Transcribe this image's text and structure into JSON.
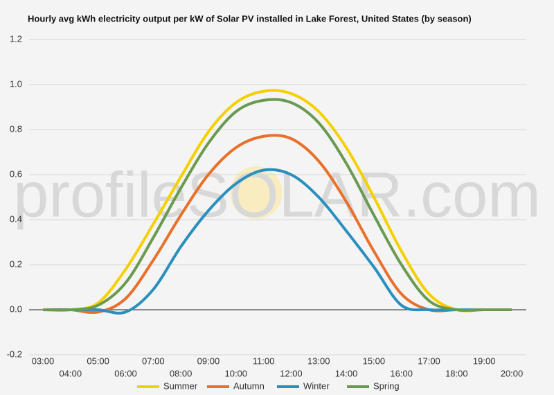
{
  "chart_data": {
    "type": "line",
    "title": "Hourly avg kWh electricity output per kW of Solar PV installed in Lake Forest, United States (by season)",
    "watermark": "profileSOLAR.com",
    "categories": [
      "03:00",
      "04:00",
      "05:00",
      "06:00",
      "07:00",
      "08:00",
      "09:00",
      "10:00",
      "11:00",
      "12:00",
      "13:00",
      "14:00",
      "15:00",
      "16:00",
      "17:00",
      "18:00",
      "19:00",
      "20:00"
    ],
    "series": [
      {
        "name": "Summer",
        "color": "#f5d000",
        "values": [
          0,
          0,
          0.03,
          0.18,
          0.38,
          0.59,
          0.79,
          0.92,
          0.97,
          0.96,
          0.88,
          0.72,
          0.5,
          0.26,
          0.07,
          0,
          0,
          0
        ]
      },
      {
        "name": "Autumn",
        "color": "#e8702a",
        "values": [
          0,
          0,
          -0.01,
          0.05,
          0.22,
          0.42,
          0.6,
          0.72,
          0.77,
          0.76,
          0.66,
          0.48,
          0.26,
          0.07,
          0,
          0,
          0,
          0
        ]
      },
      {
        "name": "Winter",
        "color": "#2a8fbd",
        "values": [
          0,
          0,
          0,
          -0.01,
          0.09,
          0.28,
          0.44,
          0.56,
          0.62,
          0.6,
          0.5,
          0.35,
          0.19,
          0.02,
          0,
          0,
          0,
          0
        ]
      },
      {
        "name": "Spring",
        "color": "#6a9a50",
        "values": [
          0,
          0,
          0.02,
          0.12,
          0.32,
          0.54,
          0.74,
          0.88,
          0.93,
          0.92,
          0.83,
          0.65,
          0.42,
          0.2,
          0.04,
          0,
          0,
          0
        ]
      }
    ],
    "ylim": [
      -0.2,
      1.2
    ],
    "yticks": [
      -0.2,
      {
        "value": 0,
        "label": "0.0"
      },
      0.2,
      0.4,
      0.6,
      0.8,
      {
        "value": 1,
        "label": "1.0"
      },
      1.2
    ],
    "grid": true
  }
}
